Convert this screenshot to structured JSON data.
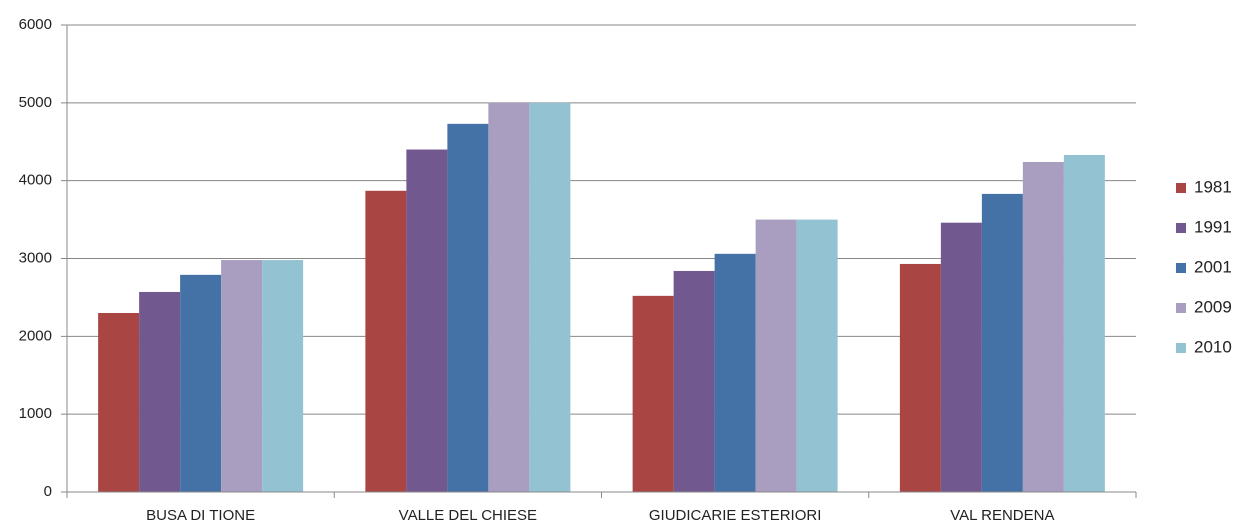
{
  "chart_data": {
    "type": "bar",
    "categories": [
      "BUSA DI TIONE",
      "VALLE DEL CHIESE",
      "GIUDICARIE ESTERIORI",
      "VAL RENDENA"
    ],
    "series": [
      {
        "name": "1981",
        "color": "#a94543",
        "values": [
          2300,
          3870,
          2520,
          2930
        ]
      },
      {
        "name": "1991",
        "color": "#71588f",
        "values": [
          2570,
          4400,
          2840,
          3460
        ]
      },
      {
        "name": "2001",
        "color": "#4471a6",
        "values": [
          2790,
          4730,
          3060,
          3830
        ]
      },
      {
        "name": "2009",
        "color": "#a99dc0",
        "values": [
          2980,
          5000,
          3500,
          4240
        ]
      },
      {
        "name": "2010",
        "color": "#93c3d3",
        "values": [
          2980,
          5000,
          3500,
          4330
        ]
      }
    ],
    "ylim": [
      0,
      6000
    ],
    "yticks": [
      0,
      1000,
      2000,
      3000,
      4000,
      5000,
      6000
    ],
    "grid": true,
    "legend": "right"
  }
}
